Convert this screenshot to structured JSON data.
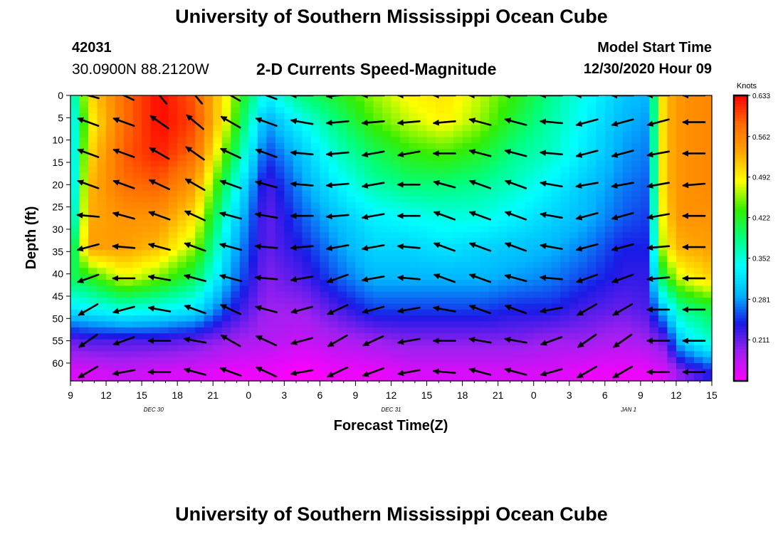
{
  "header": {
    "title": "University of Southern Mississippi Ocean Cube",
    "station_id": "42031",
    "station_coords": "30.0900N 88.2120W",
    "plot_title": "2-D Currents Speed-Magnitude",
    "model_start_label": "Model Start Time",
    "model_start_value": "12/30/2020 Hour 09"
  },
  "footer": {
    "title": "University of Southern Mississippi Ocean Cube"
  },
  "chart_data": {
    "type": "heatmap",
    "xlabel": "Forecast Time(Z)",
    "ylabel": "Depth (ft)",
    "x_tick_labels": [
      "9",
      "12",
      "15",
      "18",
      "21",
      "0",
      "3",
      "6",
      "9",
      "12",
      "15",
      "18",
      "21",
      "0",
      "3",
      "6",
      "9",
      "12",
      "15"
    ],
    "x_start_hour": 9,
    "x_end_hour": 63,
    "date_labels": [
      {
        "label": "DEC 30",
        "hour": 16
      },
      {
        "label": "DEC 31",
        "hour": 36
      },
      {
        "label": "JAN 1",
        "hour": 56
      }
    ],
    "ylim": [
      0,
      64
    ],
    "y_ticks": [
      0,
      5,
      10,
      15,
      20,
      25,
      30,
      35,
      40,
      45,
      50,
      55,
      60
    ],
    "y_inverted": true,
    "colorbar": {
      "unit": "Knots",
      "min": 0.14,
      "max": 0.633,
      "tick_labels": [
        "0.633",
        "0.562",
        "0.492",
        "0.422",
        "0.352",
        "0.281",
        "0.211"
      ],
      "colors": [
        "#ff00ff",
        "#a020f0",
        "#1a1ae6",
        "#00b4ff",
        "#00ffff",
        "#00ff80",
        "#33ee00",
        "#ffff00",
        "#ffa500",
        "#ff6a00",
        "#ff0000"
      ]
    },
    "depths_ft": [
      0,
      6,
      13,
      20,
      27,
      34,
      41,
      48,
      55,
      62
    ],
    "speed_hours": [
      9,
      10.5,
      13.5,
      16.5,
      19.5,
      22.5,
      25.5,
      28.5,
      31.5,
      34.5,
      37.5,
      40.5,
      43.5,
      46.5,
      49.5,
      52.5,
      55.5,
      57.5,
      59,
      60.5,
      63
    ],
    "speed_knots": [
      [
        0.33,
        0.5,
        0.58,
        0.63,
        0.59,
        0.47,
        0.33,
        0.39,
        0.42,
        0.46,
        0.49,
        0.5,
        0.47,
        0.43,
        0.38,
        0.34,
        0.3,
        0.29,
        0.52,
        0.55,
        0.56
      ],
      [
        0.31,
        0.48,
        0.58,
        0.63,
        0.6,
        0.46,
        0.28,
        0.34,
        0.39,
        0.44,
        0.47,
        0.49,
        0.46,
        0.41,
        0.37,
        0.33,
        0.29,
        0.28,
        0.52,
        0.55,
        0.56
      ],
      [
        0.3,
        0.5,
        0.59,
        0.62,
        0.58,
        0.42,
        0.25,
        0.3,
        0.36,
        0.4,
        0.43,
        0.44,
        0.42,
        0.38,
        0.36,
        0.32,
        0.28,
        0.27,
        0.52,
        0.55,
        0.56
      ],
      [
        0.29,
        0.52,
        0.58,
        0.59,
        0.54,
        0.37,
        0.22,
        0.28,
        0.33,
        0.37,
        0.39,
        0.39,
        0.38,
        0.36,
        0.33,
        0.3,
        0.27,
        0.26,
        0.52,
        0.55,
        0.56
      ],
      [
        0.31,
        0.53,
        0.55,
        0.55,
        0.5,
        0.33,
        0.21,
        0.26,
        0.3,
        0.33,
        0.34,
        0.35,
        0.35,
        0.33,
        0.31,
        0.29,
        0.26,
        0.25,
        0.51,
        0.55,
        0.55
      ],
      [
        0.36,
        0.54,
        0.54,
        0.52,
        0.46,
        0.3,
        0.21,
        0.24,
        0.28,
        0.31,
        0.31,
        0.32,
        0.31,
        0.3,
        0.29,
        0.27,
        0.24,
        0.24,
        0.49,
        0.53,
        0.54
      ],
      [
        0.4,
        0.42,
        0.48,
        0.45,
        0.4,
        0.28,
        0.2,
        0.22,
        0.26,
        0.29,
        0.29,
        0.29,
        0.29,
        0.28,
        0.27,
        0.25,
        0.23,
        0.23,
        0.42,
        0.48,
        0.51
      ],
      [
        0.32,
        0.33,
        0.35,
        0.34,
        0.32,
        0.24,
        0.19,
        0.19,
        0.22,
        0.25,
        0.25,
        0.25,
        0.25,
        0.24,
        0.24,
        0.22,
        0.21,
        0.22,
        0.3,
        0.38,
        0.41
      ],
      [
        0.21,
        0.22,
        0.22,
        0.22,
        0.21,
        0.19,
        0.18,
        0.17,
        0.18,
        0.19,
        0.2,
        0.2,
        0.2,
        0.2,
        0.19,
        0.19,
        0.18,
        0.19,
        0.21,
        0.31,
        0.36
      ],
      [
        0.16,
        0.16,
        0.17,
        0.16,
        0.16,
        0.15,
        0.15,
        0.14,
        0.15,
        0.15,
        0.16,
        0.16,
        0.16,
        0.16,
        0.16,
        0.15,
        0.15,
        0.15,
        0.16,
        0.2,
        0.24
      ]
    ],
    "arrow_hours": [
      10.5,
      13.5,
      16.5,
      19.5,
      22.5,
      25.5,
      28.5,
      31.5,
      34.5,
      37.5,
      40.5,
      43.5,
      46.5,
      49.5,
      52.5,
      55.5,
      58.5,
      61.5
    ],
    "arrow_depths_ft": [
      0,
      6,
      13,
      20,
      27,
      34,
      41,
      48,
      55,
      62
    ],
    "arrow_directions_deg": [
      [
        165,
        155,
        130,
        130,
        150,
        160,
        180,
        185,
        180,
        180,
        180,
        180,
        180,
        180,
        180,
        180,
        180,
        180
      ],
      [
        160,
        160,
        145,
        140,
        150,
        160,
        170,
        185,
        185,
        185,
        185,
        165,
        165,
        175,
        195,
        195,
        195,
        180
      ],
      [
        160,
        160,
        150,
        145,
        155,
        160,
        175,
        185,
        190,
        190,
        180,
        165,
        165,
        175,
        195,
        195,
        190,
        180
      ],
      [
        160,
        160,
        155,
        150,
        160,
        165,
        175,
        185,
        190,
        180,
        165,
        160,
        160,
        170,
        190,
        190,
        190,
        185
      ],
      [
        175,
        165,
        160,
        155,
        165,
        170,
        180,
        185,
        190,
        180,
        160,
        160,
        160,
        170,
        195,
        195,
        190,
        180
      ],
      [
        195,
        175,
        165,
        160,
        165,
        175,
        185,
        190,
        190,
        175,
        160,
        160,
        160,
        170,
        195,
        195,
        185,
        180
      ],
      [
        200,
        180,
        170,
        165,
        165,
        175,
        190,
        200,
        190,
        175,
        160,
        160,
        165,
        175,
        200,
        200,
        185,
        180
      ],
      [
        210,
        195,
        170,
        160,
        155,
        165,
        195,
        205,
        195,
        190,
        170,
        160,
        160,
        190,
        210,
        210,
        180,
        180
      ],
      [
        215,
        200,
        180,
        170,
        150,
        155,
        195,
        210,
        205,
        190,
        180,
        170,
        170,
        200,
        215,
        215,
        180,
        180
      ],
      [
        210,
        190,
        180,
        165,
        160,
        155,
        190,
        205,
        200,
        190,
        175,
        165,
        165,
        195,
        210,
        210,
        180,
        180
      ]
    ]
  }
}
